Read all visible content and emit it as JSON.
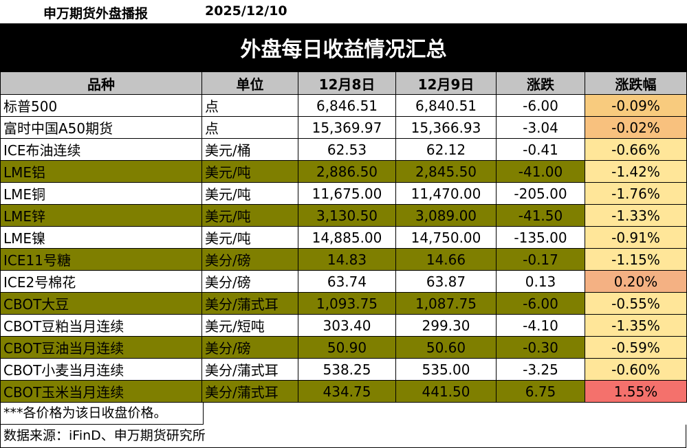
{
  "header": {
    "org": "申万期货外盘播报",
    "date": "2025/12/10"
  },
  "title": "外盘每日收益情况汇总",
  "columns": [
    "品种",
    "单位",
    "12月8日",
    "12月9日",
    "涨跌",
    "涨跌幅"
  ],
  "rows": [
    {
      "name": "标普500",
      "unit": "点",
      "d1": "6,846.51",
      "d2": "6,840.51",
      "chg": "-6.00",
      "pct": "-0.09%",
      "hl": false,
      "pct_color": "#f8cb7e"
    },
    {
      "name": "富时中国A50期货",
      "unit": "点",
      "d1": "15,369.97",
      "d2": "15,366.93",
      "chg": "-3.04",
      "pct": "-0.02%",
      "hl": false,
      "pct_color": "#f8c17e"
    },
    {
      "name": "ICE布油连续",
      "unit": "美元/桶",
      "d1": "62.53",
      "d2": "62.12",
      "chg": "-0.41",
      "pct": "-0.66%",
      "hl": false,
      "pct_color": "#ffe699"
    },
    {
      "name": "LME铝",
      "unit": "美元/吨",
      "d1": "2,886.50",
      "d2": "2,845.50",
      "chg": "-41.00",
      "pct": "-1.42%",
      "hl": true,
      "pct_color": "#ffe699"
    },
    {
      "name": "LME铜",
      "unit": "美元/吨",
      "d1": "11,675.00",
      "d2": "11,470.00",
      "chg": "-205.00",
      "pct": "-1.76%",
      "hl": false,
      "pct_color": "#ffe699"
    },
    {
      "name": "LME锌",
      "unit": "美元/吨",
      "d1": "3,130.50",
      "d2": "3,089.00",
      "chg": "-41.50",
      "pct": "-1.33%",
      "hl": true,
      "pct_color": "#ffe699"
    },
    {
      "name": "LME镍",
      "unit": "美元/吨",
      "d1": "14,885.00",
      "d2": "14,750.00",
      "chg": "-135.00",
      "pct": "-0.91%",
      "hl": false,
      "pct_color": "#ffe699"
    },
    {
      "name": "ICE11号糖",
      "unit": "美分/磅",
      "d1": "14.83",
      "d2": "14.66",
      "chg": "-0.17",
      "pct": "-1.15%",
      "hl": true,
      "pct_color": "#ffe699"
    },
    {
      "name": "ICE2号棉花",
      "unit": "美分/磅",
      "d1": "63.74",
      "d2": "63.87",
      "chg": "0.13",
      "pct": "0.20%",
      "hl": false,
      "pct_color": "#f4b183"
    },
    {
      "name": "CBOT大豆",
      "unit": "美分/蒲式耳",
      "d1": "1,093.75",
      "d2": "1,087.75",
      "chg": "-6.00",
      "pct": "-0.55%",
      "hl": true,
      "pct_color": "#ffe699"
    },
    {
      "name": "CBOT豆粕当月连续",
      "unit": "美元/短吨",
      "d1": "303.40",
      "d2": "299.30",
      "chg": "-4.10",
      "pct": "-1.35%",
      "hl": false,
      "pct_color": "#ffe699"
    },
    {
      "name": "CBOT豆油当月连续",
      "unit": "美分/磅",
      "d1": "50.90",
      "d2": "50.60",
      "chg": "-0.30",
      "pct": "-0.59%",
      "hl": true,
      "pct_color": "#ffe699"
    },
    {
      "name": "CBOT小麦当月连续",
      "unit": "美分/蒲式耳",
      "d1": "538.25",
      "d2": "535.00",
      "chg": "-3.25",
      "pct": "-0.60%",
      "hl": false,
      "pct_color": "#ffe699"
    },
    {
      "name": "CBOT玉米当月连续",
      "unit": "美分/蒲式耳",
      "d1": "434.75",
      "d2": "441.50",
      "chg": "6.75",
      "pct": "1.55%",
      "hl": true,
      "pct_color": "#f4716c"
    }
  ],
  "note": "***各价格为该日收盘价格。",
  "source": "数据来源：iFinD、申万期货研究所",
  "colors": {
    "highlight_row": "#7f7f00",
    "header_bg": "#c4c4c4",
    "title_bg": "#000000"
  }
}
